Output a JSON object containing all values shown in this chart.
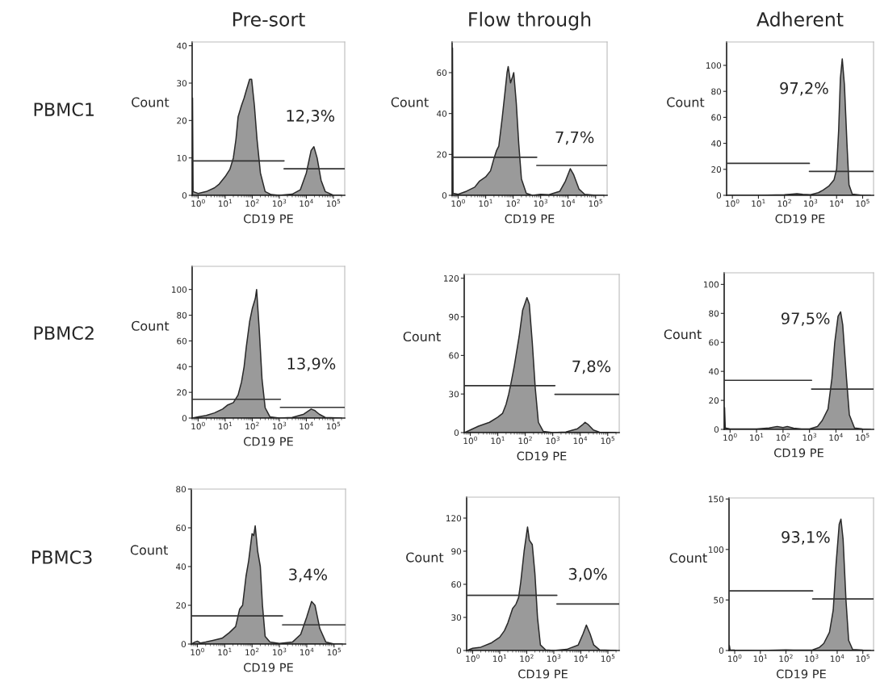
{
  "chart_data": [
    {
      "type": "area",
      "title": "Pre-sort",
      "xlabel": "CD19 PE",
      "ylabel": "Count",
      "log": "x",
      "xlim": [
        0.6,
        262144
      ],
      "xticks": [
        {
          "value": 1,
          "label": "10$^{0}$"
        },
        {
          "value": 10,
          "label": "10$^{1}$"
        },
        {
          "value": 100,
          "label": "10$^{2}$"
        },
        {
          "value": 1000,
          "label": "10$^{3}$"
        },
        {
          "value": 10000,
          "label": "10$^{4}$"
        },
        {
          "value": 100000,
          "label": "10$^{5}$"
        }
      ],
      "ylim": [
        0,
        41
      ],
      "yticks": [
        0,
        10,
        20,
        30,
        40
      ],
      "annotations": [
        "PBMC1",
        "12,3%"
      ],
      "series": [
        {
          "color": "#9a9a9a",
          "x": [
            0.62,
            0.65,
            1,
            2,
            4,
            6,
            10,
            15,
            20,
            25,
            30,
            40,
            50,
            60,
            80,
            95,
            120,
            150,
            200,
            300,
            500,
            1000,
            3000,
            6000,
            10000,
            15000,
            19000,
            25000,
            35000,
            50000,
            100000,
            200000
          ],
          "values": [
            26,
            1,
            0.5,
            1,
            2,
            3,
            5,
            7,
            10,
            15,
            21,
            24,
            26,
            28,
            31,
            31,
            24,
            15,
            6,
            1,
            0.2,
            0,
            0.3,
            1.5,
            6,
            12,
            13,
            10,
            4,
            1,
            0,
            0
          ]
        },
        {
          "type": "line",
          "color": "#333333",
          "x": [
            0.6,
            1500
          ],
          "values": [
            9.2,
            9.2
          ]
        },
        {
          "type": "line",
          "color": "#333333",
          "x": [
            1500,
            262144
          ],
          "values": [
            7.1,
            7.1
          ]
        }
      ]
    },
    {
      "type": "area",
      "title": "Flow through",
      "xlabel": "CD19 PE",
      "ylabel": "Count",
      "log": "x",
      "xlim": [
        0.6,
        262144
      ],
      "xticks": [
        {
          "value": 1,
          "label": "10$^{0}$"
        },
        {
          "value": 10,
          "label": "10$^{1}$"
        },
        {
          "value": 100,
          "label": "10$^{2}$"
        },
        {
          "value": 1000,
          "label": "10$^{3}$"
        },
        {
          "value": 10000,
          "label": "10$^{4}$"
        },
        {
          "value": 100000,
          "label": "10$^{5}$"
        }
      ],
      "ylim": [
        0,
        75
      ],
      "yticks": [
        0,
        20,
        40,
        60
      ],
      "annotations": [
        "7,7%"
      ],
      "series": [
        {
          "color": "#9a9a9a",
          "x": [
            0.62,
            0.65,
            1,
            2,
            4,
            6,
            10,
            15,
            20,
            25,
            30,
            40,
            50,
            60,
            66,
            80,
            95,
            105,
            130,
            160,
            200,
            300,
            500,
            1000,
            2000,
            5000,
            8000,
            12000,
            16000,
            25000,
            40000,
            100000,
            200000
          ],
          "values": [
            72,
            1,
            0.5,
            2,
            4,
            7,
            9,
            12,
            18,
            22,
            24,
            38,
            50,
            60,
            63,
            55,
            58,
            60,
            45,
            25,
            8,
            1,
            0,
            0.5,
            0.3,
            2,
            7,
            13,
            10,
            3,
            0.5,
            0,
            0
          ]
        },
        {
          "type": "line",
          "color": "#333333",
          "x": [
            0.6,
            720
          ],
          "values": [
            18.6,
            18.6
          ]
        },
        {
          "type": "line",
          "color": "#333333",
          "x": [
            720,
            262144
          ],
          "values": [
            14.6,
            14.6
          ]
        }
      ]
    },
    {
      "type": "area",
      "title": "Adherent",
      "xlabel": "CD19 PE",
      "ylabel": "Count",
      "log": "x",
      "xlim": [
        0.6,
        262144
      ],
      "xticks": [
        {
          "value": 1,
          "label": "10$^{0}$"
        },
        {
          "value": 10,
          "label": "10$^{1}$"
        },
        {
          "value": 100,
          "label": "10$^{2}$"
        },
        {
          "value": 1000,
          "label": "10$^{3}$"
        },
        {
          "value": 10000,
          "label": "10$^{4}$"
        },
        {
          "value": 100000,
          "label": "10$^{5}$"
        }
      ],
      "ylim": [
        0,
        118
      ],
      "yticks": [
        0,
        20,
        40,
        60,
        80,
        100
      ],
      "annotations": [
        "97,2%"
      ],
      "series": [
        {
          "color": "#9a9a9a",
          "x": [
            0.63,
            10,
            100,
            200,
            300,
            500,
            1000,
            2000,
            3000,
            5000,
            8000,
            10000,
            12000,
            14000,
            16500,
            20000,
            25000,
            30000,
            40000,
            100000,
            200000
          ],
          "values": [
            0,
            0,
            0.5,
            1,
            1.3,
            0.8,
            0.5,
            2,
            4,
            7,
            12,
            20,
            50,
            90,
            105,
            85,
            40,
            8,
            1,
            0,
            0
          ]
        },
        {
          "type": "line",
          "color": "#333333",
          "x": [
            0.6,
            900
          ],
          "values": [
            24.6,
            24.6
          ]
        },
        {
          "type": "line",
          "color": "#333333",
          "x": [
            900,
            262144
          ],
          "values": [
            18.4,
            18.4
          ]
        }
      ]
    },
    {
      "type": "area",
      "xlabel": "CD19 PE",
      "ylabel": "Count",
      "log": "x",
      "xlim": [
        0.6,
        262144
      ],
      "xticks": [
        {
          "value": 1,
          "label": "10$^{0}$"
        },
        {
          "value": 10,
          "label": "10$^{1}$"
        },
        {
          "value": 100,
          "label": "10$^{2}$"
        },
        {
          "value": 1000,
          "label": "10$^{3}$"
        },
        {
          "value": 10000,
          "label": "10$^{4}$"
        },
        {
          "value": 100000,
          "label": "10$^{5}$"
        }
      ],
      "ylim": [
        0,
        118
      ],
      "yticks": [
        0,
        20,
        40,
        60,
        80,
        100
      ],
      "annotations": [
        "PBMC2",
        "13,9%"
      ],
      "series": [
        {
          "color": "#9a9a9a",
          "x": [
            0.62,
            1,
            2,
            4,
            8,
            12,
            20,
            30,
            40,
            50,
            60,
            80,
            100,
            130,
            145,
            180,
            230,
            300,
            450,
            1000,
            3000,
            8000,
            15000,
            20000,
            30000,
            50000,
            200000
          ],
          "values": [
            0,
            1,
            2,
            4,
            7,
            10,
            12,
            18,
            28,
            40,
            55,
            75,
            85,
            93,
            100,
            70,
            30,
            8,
            1,
            0,
            0.5,
            3,
            7,
            6,
            3,
            0.5,
            0
          ]
        },
        {
          "type": "line",
          "color": "#333333",
          "x": [
            0.6,
            1100
          ],
          "values": [
            14.6,
            14.6
          ]
        },
        {
          "type": "line",
          "color": "#333333",
          "x": [
            1100,
            262144
          ],
          "values": [
            8.3,
            8.3
          ]
        }
      ]
    },
    {
      "type": "area",
      "xlabel": "CD19 PE",
      "ylabel": "Count",
      "log": "x",
      "xlim": [
        0.6,
        262144
      ],
      "xticks": [
        {
          "value": 1,
          "label": "10$^{0}$"
        },
        {
          "value": 10,
          "label": "10$^{1}$"
        },
        {
          "value": 100,
          "label": "10$^{2}$"
        },
        {
          "value": 1000,
          "label": "10$^{3}$"
        },
        {
          "value": 10000,
          "label": "10$^{4}$"
        },
        {
          "value": 100000,
          "label": "10$^{5}$"
        }
      ],
      "ylim": [
        0,
        123
      ],
      "yticks": [
        0,
        30,
        60,
        90,
        120
      ],
      "annotations": [
        "7,8%"
      ],
      "series": [
        {
          "color": "#9a9a9a",
          "x": [
            0.62,
            1,
            2,
            5,
            10,
            15,
            20,
            25,
            30,
            40,
            60,
            80,
            115,
            140,
            180,
            230,
            300,
            450,
            1000,
            3000,
            8000,
            12000,
            15000,
            20000,
            30000,
            50000,
            200000
          ],
          "values": [
            0,
            2,
            5,
            8,
            12,
            15,
            22,
            30,
            38,
            52,
            75,
            95,
            105,
            100,
            70,
            35,
            8,
            1,
            0,
            0.5,
            3,
            6,
            8,
            6,
            2,
            0.3,
            0
          ]
        },
        {
          "type": "line",
          "color": "#333333",
          "x": [
            0.6,
            1200
          ],
          "values": [
            36.5,
            36.5
          ]
        },
        {
          "type": "line",
          "color": "#333333",
          "x": [
            1200,
            262144
          ],
          "values": [
            29.7,
            29.7
          ]
        }
      ]
    },
    {
      "type": "area",
      "xlabel": "CD19 PE",
      "ylabel": "Count",
      "log": "x",
      "xlim": [
        0.6,
        262144
      ],
      "xticks": [
        {
          "value": 1,
          "label": "10$^{0}$"
        },
        {
          "value": 10,
          "label": "10$^{1}$"
        },
        {
          "value": 100,
          "label": "10$^{2}$"
        },
        {
          "value": 1000,
          "label": "10$^{3}$"
        },
        {
          "value": 10000,
          "label": "10$^{4}$"
        },
        {
          "value": 100000,
          "label": "10$^{5}$"
        }
      ],
      "ylim": [
        0,
        108
      ],
      "yticks": [
        0,
        20,
        40,
        60,
        80,
        100
      ],
      "annotations": [
        "97,5%"
      ],
      "series": [
        {
          "color": "#9a9a9a",
          "x": [
            0.62,
            0.66,
            1,
            10,
            30,
            60,
            100,
            145,
            250,
            500,
            1000,
            2000,
            3000,
            5000,
            7000,
            9000,
            12000,
            15000,
            18000,
            25000,
            32000,
            50000,
            100000,
            200000
          ],
          "values": [
            15,
            1,
            0.3,
            0.3,
            1,
            2,
            1.3,
            2,
            0.8,
            0.3,
            0.3,
            2,
            6,
            14,
            35,
            60,
            78,
            81,
            72,
            35,
            10,
            1,
            0.3,
            0
          ]
        },
        {
          "type": "line",
          "color": "#333333",
          "x": [
            0.6,
            1200
          ],
          "values": [
            33.8,
            33.8
          ]
        },
        {
          "type": "line",
          "color": "#333333",
          "x": [
            1200,
            262144
          ],
          "values": [
            27.8,
            27.8
          ]
        }
      ]
    },
    {
      "type": "area",
      "xlabel": "CD19 PE",
      "ylabel": "Count",
      "log": "x",
      "xlim": [
        0.6,
        262144
      ],
      "xticks": [
        {
          "value": 1,
          "label": "10$^{0}$"
        },
        {
          "value": 10,
          "label": "10$^{1}$"
        },
        {
          "value": 100,
          "label": "10$^{2}$"
        },
        {
          "value": 1000,
          "label": "10$^{3}$"
        },
        {
          "value": 10000,
          "label": "10$^{4}$"
        },
        {
          "value": 100000,
          "label": "10$^{5}$"
        }
      ],
      "ylim": [
        0,
        80
      ],
      "yticks": [
        0,
        20,
        40,
        60,
        80
      ],
      "annotations": [
        "PBMC3",
        "3,4%"
      ],
      "series": [
        {
          "color": "#9a9a9a",
          "x": [
            0.62,
            0.8,
            1,
            1.3,
            2,
            4,
            8,
            15,
            25,
            35,
            45,
            60,
            75,
            100,
            115,
            130,
            160,
            200,
            240,
            300,
            450,
            1000,
            3000,
            6000,
            10000,
            15000,
            20000,
            30000,
            50000,
            100000,
            200000
          ],
          "values": [
            0,
            1,
            1.5,
            0.5,
            1,
            2,
            3,
            6,
            9,
            18,
            20,
            35,
            43,
            57,
            56,
            61,
            48,
            40,
            20,
            4,
            1,
            0.3,
            1,
            5,
            14,
            22,
            20,
            8,
            1,
            0,
            0
          ]
        },
        {
          "type": "line",
          "color": "#333333",
          "x": [
            0.6,
            1300
          ],
          "values": [
            14.5,
            14.5
          ]
        },
        {
          "type": "line",
          "color": "#333333",
          "x": [
            1300,
            262144
          ],
          "values": [
            9.9,
            9.9
          ]
        }
      ]
    },
    {
      "type": "area",
      "xlabel": "CD19 PE",
      "ylabel": "Count",
      "log": "x",
      "xlim": [
        0.6,
        262144
      ],
      "xticks": [
        {
          "value": 1,
          "label": "10$^{0}$"
        },
        {
          "value": 10,
          "label": "10$^{1}$"
        },
        {
          "value": 100,
          "label": "10$^{2}$"
        },
        {
          "value": 1000,
          "label": "10$^{3}$"
        },
        {
          "value": 10000,
          "label": "10$^{4}$"
        },
        {
          "value": 100000,
          "label": "10$^{5}$"
        }
      ],
      "ylim": [
        0,
        139
      ],
      "yticks": [
        0,
        30,
        60,
        90,
        120
      ],
      "annotations": [
        "3,0%"
      ],
      "series": [
        {
          "color": "#9a9a9a",
          "x": [
            0.62,
            1,
            2,
            5,
            10,
            15,
            20,
            30,
            40,
            50,
            60,
            80,
            107,
            125,
            160,
            200,
            250,
            320,
            500,
            1000,
            3000,
            8000,
            12000,
            16000,
            22000,
            30000,
            50000,
            200000
          ],
          "values": [
            0,
            2,
            3,
            7,
            12,
            18,
            25,
            38,
            42,
            48,
            62,
            90,
            112,
            100,
            96,
            70,
            30,
            5,
            0.5,
            0,
            1,
            5,
            15,
            23,
            15,
            5,
            0.5,
            0
          ]
        },
        {
          "type": "line",
          "color": "#333333",
          "x": [
            0.6,
            1300
          ],
          "values": [
            50,
            50
          ]
        },
        {
          "type": "line",
          "color": "#333333",
          "x": [
            1300,
            262144
          ],
          "values": [
            42.2,
            42.2
          ]
        }
      ]
    },
    {
      "type": "area",
      "xlabel": "CD19 PE",
      "ylabel": "Count",
      "log": "x",
      "xlim": [
        0.6,
        262144
      ],
      "xticks": [
        {
          "value": 1,
          "label": "10$^{0}$"
        },
        {
          "value": 10,
          "label": "10$^{1}$"
        },
        {
          "value": 100,
          "label": "10$^{2}$"
        },
        {
          "value": 1000,
          "label": "10$^{3}$"
        },
        {
          "value": 10000,
          "label": "10$^{4}$"
        },
        {
          "value": 100000,
          "label": "10$^{5}$"
        }
      ],
      "ylim": [
        0,
        151
      ],
      "yticks": [
        0,
        50,
        100,
        150
      ],
      "annotations": [
        "93,1%"
      ],
      "series": [
        {
          "color": "#9a9a9a",
          "x": [
            0.62,
            0.66,
            1,
            10,
            100,
            200,
            1000,
            2000,
            3000,
            5000,
            7000,
            9000,
            12000,
            14000,
            17000,
            22000,
            28000,
            40000,
            100000,
            200000
          ],
          "values": [
            5,
            0.5,
            0.3,
            0,
            0.5,
            0.3,
            0.3,
            3,
            7,
            18,
            40,
            85,
            125,
            130,
            110,
            50,
            10,
            1,
            0.3,
            0
          ]
        },
        {
          "type": "line",
          "color": "#333333",
          "x": [
            0.6,
            1100
          ],
          "values": [
            59,
            59
          ]
        },
        {
          "type": "line",
          "color": "#333333",
          "x": [
            1100,
            262144
          ],
          "values": [
            51,
            51
          ]
        }
      ]
    }
  ]
}
